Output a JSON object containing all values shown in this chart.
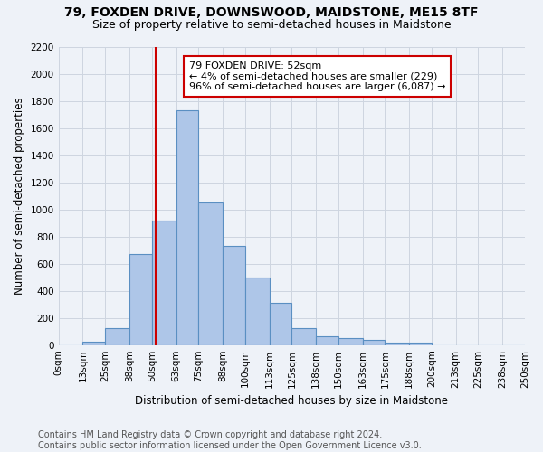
{
  "title1": "79, FOXDEN DRIVE, DOWNSWOOD, MAIDSTONE, ME15 8TF",
  "title2": "Size of property relative to semi-detached houses in Maidstone",
  "xlabel": "Distribution of semi-detached houses by size in Maidstone",
  "ylabel": "Number of semi-detached properties",
  "annotation_line1": "79 FOXDEN DRIVE: 52sqm",
  "annotation_line2": "← 4% of semi-detached houses are smaller (229)",
  "annotation_line3": "96% of semi-detached houses are larger (6,087) →",
  "footer1": "Contains HM Land Registry data © Crown copyright and database right 2024.",
  "footer2": "Contains public sector information licensed under the Open Government Licence v3.0.",
  "property_size": 52,
  "bin_edges": [
    0,
    13,
    25,
    38,
    50,
    63,
    75,
    88,
    100,
    113,
    125,
    138,
    150,
    163,
    175,
    188,
    200,
    213,
    225,
    238,
    250
  ],
  "bar_heights": [
    0,
    25,
    125,
    670,
    920,
    1730,
    1050,
    730,
    500,
    310,
    125,
    65,
    50,
    40,
    15,
    15,
    0,
    0,
    0,
    0
  ],
  "bar_color": "#aec6e8",
  "bar_edge_color": "#5a8fc2",
  "bar_edge_width": 0.8,
  "vline_color": "#cc0000",
  "vline_x": 52,
  "annotation_box_color": "#cc0000",
  "grid_color": "#cdd5e0",
  "background_color": "#eef2f8",
  "ylim": [
    0,
    2200
  ],
  "title1_fontsize": 10,
  "title2_fontsize": 9,
  "xlabel_fontsize": 8.5,
  "ylabel_fontsize": 8.5,
  "tick_fontsize": 7.5,
  "footer_fontsize": 7,
  "annotation_fontsize": 8
}
